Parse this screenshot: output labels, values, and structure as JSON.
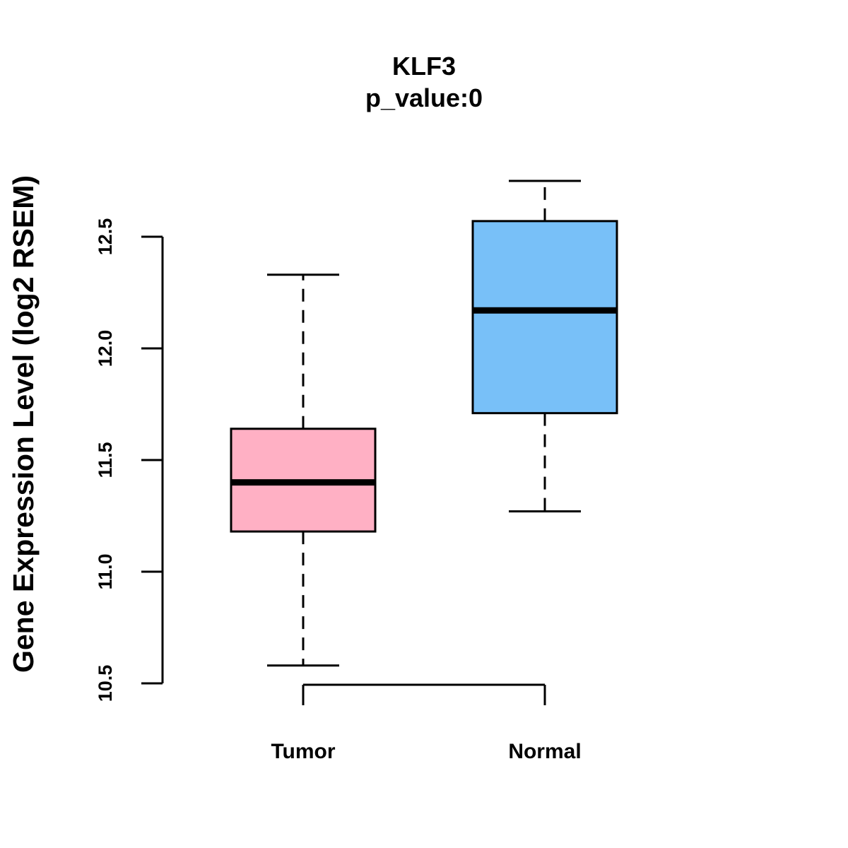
{
  "chart_data": {
    "type": "box",
    "title": "KLF3",
    "subtitle": "p_value:0",
    "ylabel": "Gene Expression Level (log2 RSEM)",
    "xlabel": "",
    "ylim": [
      10.5,
      12.5
    ],
    "yticks": [
      "10.5",
      "11.0",
      "11.5",
      "12.0",
      "12.5"
    ],
    "categories": [
      "Tumor",
      "Normal"
    ],
    "boxes": [
      {
        "name": "Tumor",
        "whisker_low": 10.58,
        "q1": 11.18,
        "median": 11.4,
        "q3": 11.64,
        "whisker_high": 12.33,
        "color": "#FFB0C4"
      },
      {
        "name": "Normal",
        "whisker_low": 11.27,
        "q1": 11.71,
        "median": 12.17,
        "q3": 12.57,
        "whisker_high": 12.75,
        "color": "#78C0F8"
      }
    ]
  }
}
